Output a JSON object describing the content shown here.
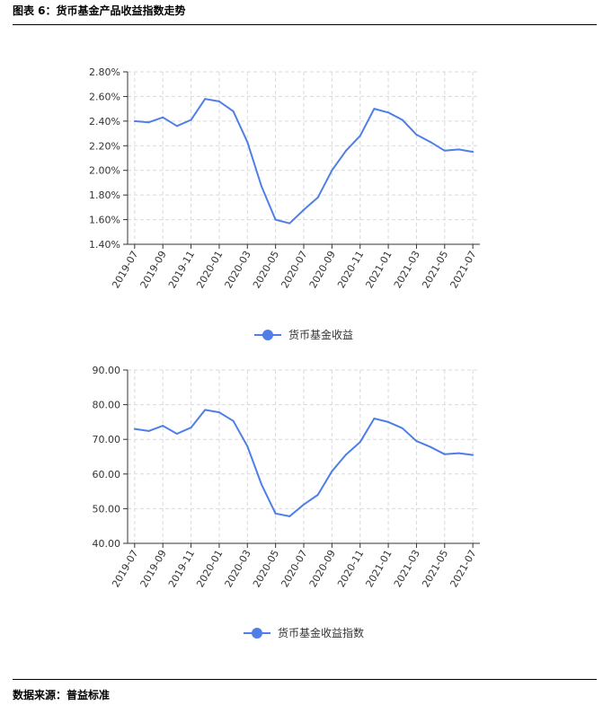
{
  "header": {
    "title": "图表 6：货币基金产品收益指数走势"
  },
  "footer": {
    "source": "数据来源：普益标准"
  },
  "colors": {
    "line": "#4f7fe6",
    "grid": "#d9d9d9",
    "axis": "#333333"
  },
  "chart_data": [
    {
      "type": "line",
      "title": "",
      "xlabel": "",
      "ylabel": "",
      "ylim": [
        1.4,
        2.8
      ],
      "yticks": [
        "1.40%",
        "1.60%",
        "1.80%",
        "2.00%",
        "2.20%",
        "2.40%",
        "2.60%",
        "2.80%"
      ],
      "ytick_values": [
        1.4,
        1.6,
        1.8,
        2.0,
        2.2,
        2.4,
        2.6,
        2.8
      ],
      "categories": [
        "2019-07",
        "2019-08",
        "2019-09",
        "2019-10",
        "2019-11",
        "2019-12",
        "2020-01",
        "2020-02",
        "2020-03",
        "2020-04",
        "2020-05",
        "2020-06",
        "2020-07",
        "2020-08",
        "2020-09",
        "2020-10",
        "2020-11",
        "2020-12",
        "2021-01",
        "2021-02",
        "2021-03",
        "2021-04",
        "2021-05",
        "2021-06",
        "2021-07"
      ],
      "xtick_labels": [
        "2019-07",
        "2019-09",
        "2019-11",
        "2020-01",
        "2020-03",
        "2020-05",
        "2020-07",
        "2020-09",
        "2020-11",
        "2021-01",
        "2021-03",
        "2021-05",
        "2021-07"
      ],
      "grid": true,
      "legend_position": "bottom-center",
      "series": [
        {
          "name": "货币基金收益",
          "values": [
            2.4,
            2.39,
            2.43,
            2.36,
            2.41,
            2.58,
            2.56,
            2.48,
            2.23,
            1.87,
            1.6,
            1.57,
            1.68,
            1.78,
            2.0,
            2.16,
            2.28,
            2.5,
            2.47,
            2.41,
            2.29,
            2.23,
            2.16,
            2.17,
            2.15
          ]
        }
      ]
    },
    {
      "type": "line",
      "title": "",
      "xlabel": "",
      "ylabel": "",
      "ylim": [
        40,
        90
      ],
      "yticks": [
        "40.00",
        "50.00",
        "60.00",
        "70.00",
        "80.00",
        "90.00"
      ],
      "ytick_values": [
        40,
        50,
        60,
        70,
        80,
        90
      ],
      "categories": [
        "2019-07",
        "2019-08",
        "2019-09",
        "2019-10",
        "2019-11",
        "2019-12",
        "2020-01",
        "2020-02",
        "2020-03",
        "2020-04",
        "2020-05",
        "2020-06",
        "2020-07",
        "2020-08",
        "2020-09",
        "2020-10",
        "2020-11",
        "2020-12",
        "2021-01",
        "2021-02",
        "2021-03",
        "2021-04",
        "2021-05",
        "2021-06",
        "2021-07"
      ],
      "xtick_labels": [
        "2019-07",
        "2019-09",
        "2019-11",
        "2020-01",
        "2020-03",
        "2020-05",
        "2020-07",
        "2020-09",
        "2020-11",
        "2021-01",
        "2021-03",
        "2021-05",
        "2021-07"
      ],
      "grid": true,
      "legend_position": "bottom-center",
      "series": [
        {
          "name": "货币基金收益指数",
          "values": [
            73.0,
            72.4,
            73.9,
            71.6,
            73.4,
            78.5,
            77.8,
            75.3,
            68.0,
            57.0,
            48.6,
            47.8,
            51.2,
            54.0,
            60.8,
            65.6,
            69.2,
            76.0,
            75.0,
            73.2,
            69.5,
            67.8,
            65.7,
            66.0,
            65.5
          ]
        }
      ]
    }
  ]
}
